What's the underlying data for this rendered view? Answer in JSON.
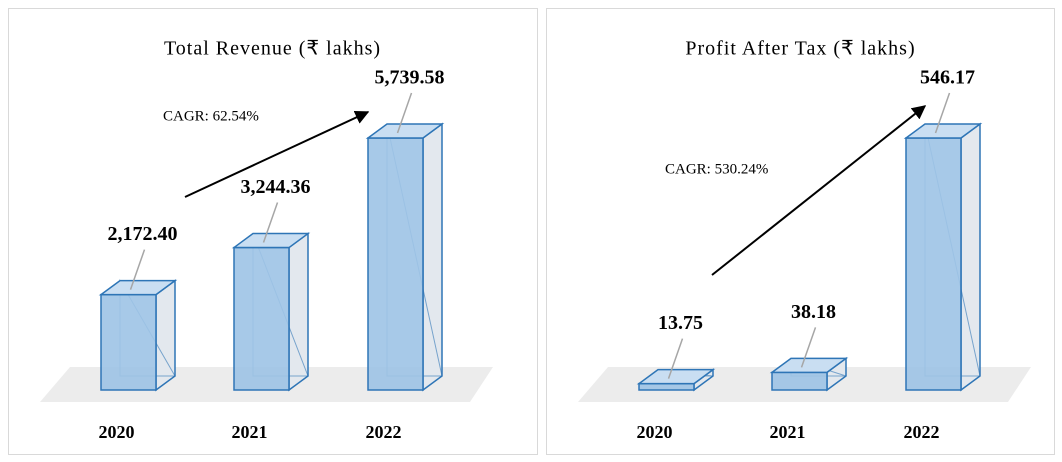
{
  "chart_data": [
    {
      "type": "bar3d",
      "title": "Total Revenue (₹ lakhs)",
      "categories": [
        "2020",
        "2021",
        "2022"
      ],
      "values": [
        2172.4,
        3244.36,
        5739.58
      ],
      "value_labels": [
        "2,172.40",
        "3,244.36",
        "5,739.58"
      ],
      "color": "#9dc3e6",
      "annotation": "CAGR: 62.54%"
    },
    {
      "type": "bar3d",
      "title": "Profit After Tax (₹ lakhs)",
      "categories": [
        "2020",
        "2021",
        "2022"
      ],
      "values": [
        13.75,
        38.18,
        546.17
      ],
      "value_labels": [
        "13.75",
        "38.18",
        "546.17"
      ],
      "color": "#9dc3e6",
      "annotation": "CAGR: 530.24%"
    }
  ]
}
